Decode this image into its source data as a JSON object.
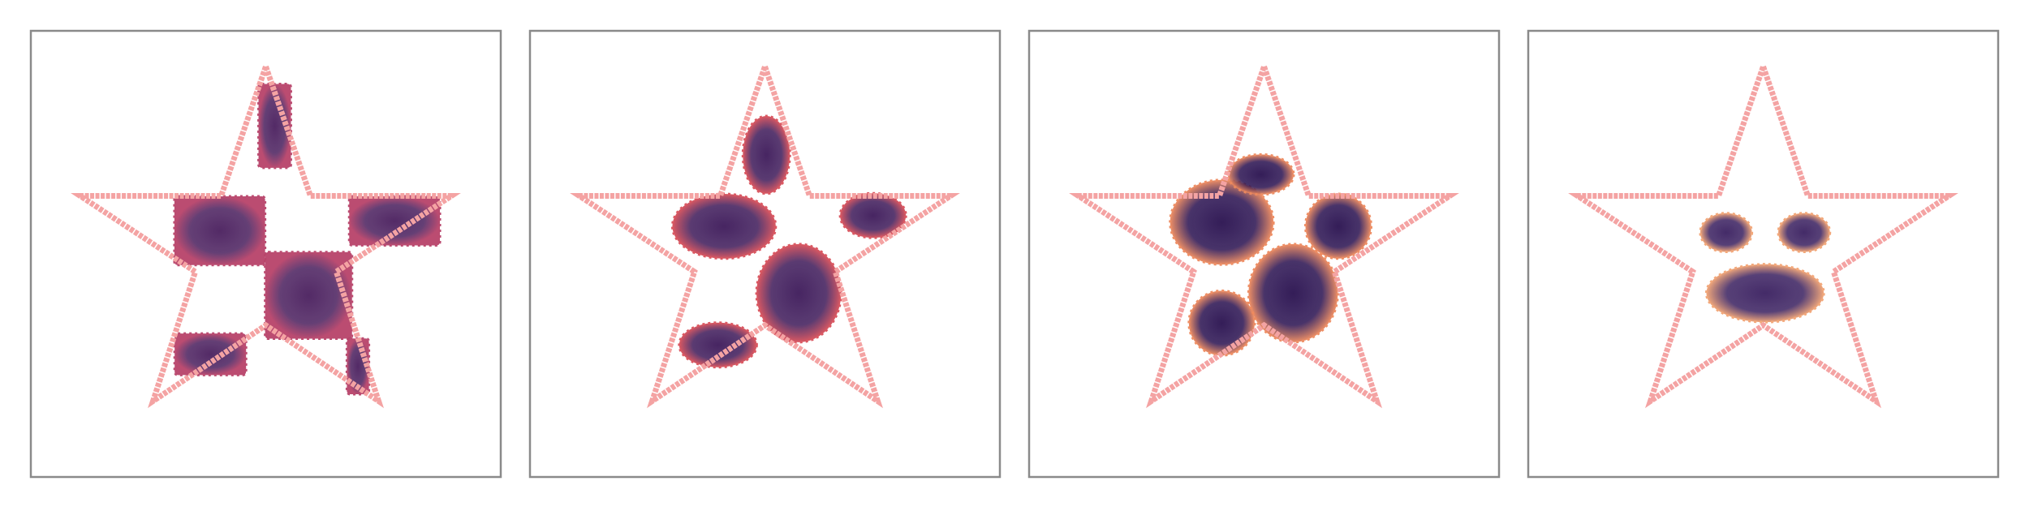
{
  "chart_data": {
    "type": "scatter",
    "xlim": [
      0,
      1
    ],
    "ylim": [
      0,
      1
    ],
    "star_color": "#f4a3a3",
    "star": {
      "x": [
        0.5,
        0.595,
        0.895,
        0.65,
        0.74,
        0.5,
        0.26,
        0.35,
        0.105,
        0.405
      ],
      "y": [
        0.92,
        0.63,
        0.63,
        0.46,
        0.17,
        0.34,
        0.17,
        0.46,
        0.63,
        0.63
      ]
    },
    "panels": [
      {
        "shape": "rect",
        "center": "#4a1f5e",
        "edge": "#b8436a",
        "regions": [
          {
            "cx": 0.519,
            "cy": 0.787,
            "w": 0.069,
            "h": 0.188
          },
          {
            "cx": 0.402,
            "cy": 0.552,
            "w": 0.193,
            "h": 0.154
          },
          {
            "cx": 0.774,
            "cy": 0.574,
            "w": 0.193,
            "h": 0.11
          },
          {
            "cx": 0.591,
            "cy": 0.407,
            "w": 0.185,
            "h": 0.194
          },
          {
            "cx": 0.382,
            "cy": 0.275,
            "w": 0.152,
            "h": 0.093
          },
          {
            "cx": 0.696,
            "cy": 0.248,
            "w": 0.047,
            "h": 0.125
          }
        ]
      },
      {
        "shape": "ellipse",
        "center": "#3e1a5a",
        "edge": "#d9505a",
        "regions": [
          {
            "cx": 0.413,
            "cy": 0.562,
            "w": 0.22,
            "h": 0.145
          },
          {
            "cx": 0.503,
            "cy": 0.722,
            "w": 0.1,
            "h": 0.174
          },
          {
            "cx": 0.73,
            "cy": 0.586,
            "w": 0.14,
            "h": 0.1
          },
          {
            "cx": 0.572,
            "cy": 0.412,
            "w": 0.18,
            "h": 0.22
          },
          {
            "cx": 0.4,
            "cy": 0.296,
            "w": 0.165,
            "h": 0.1
          }
        ]
      },
      {
        "shape": "ellipse",
        "center": "#2a1150",
        "edge": "#ee8a5e",
        "regions": [
          {
            "cx": 0.41,
            "cy": 0.571,
            "w": 0.22,
            "h": 0.19
          },
          {
            "cx": 0.658,
            "cy": 0.562,
            "w": 0.14,
            "h": 0.145
          },
          {
            "cx": 0.562,
            "cy": 0.412,
            "w": 0.19,
            "h": 0.22
          },
          {
            "cx": 0.41,
            "cy": 0.345,
            "w": 0.14,
            "h": 0.145
          },
          {
            "cx": 0.493,
            "cy": 0.678,
            "w": 0.14,
            "h": 0.09
          }
        ]
      },
      {
        "shape": "ellipse",
        "center": "#3a2060",
        "edge": "#f2a474",
        "regions": [
          {
            "cx": 0.421,
            "cy": 0.548,
            "w": 0.11,
            "h": 0.087
          },
          {
            "cx": 0.587,
            "cy": 0.548,
            "w": 0.11,
            "h": 0.087
          },
          {
            "cx": 0.504,
            "cy": 0.412,
            "w": 0.25,
            "h": 0.13
          }
        ]
      }
    ]
  }
}
